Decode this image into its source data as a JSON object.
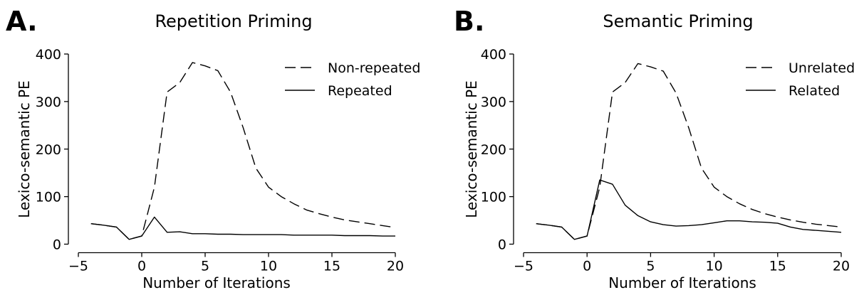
{
  "panels": [
    {
      "letter": "A.",
      "title": "Repetition Priming",
      "xlabel": "Number of Iterations",
      "ylabel": "Lexico-semantic PE",
      "legend_position": "top-right",
      "legend": [
        "Non-repeated",
        "Repeated"
      ]
    },
    {
      "letter": "B.",
      "title": "Semantic Priming",
      "xlabel": "Number of Iterations",
      "ylabel": "Lexico-semantic PE",
      "legend_position": "top-right",
      "legend": [
        "Unrelated",
        "Related"
      ]
    }
  ],
  "chart_data": [
    {
      "type": "line",
      "title": "Repetition Priming",
      "xlabel": "Number of Iterations",
      "ylabel": "Lexico-semantic PE",
      "xlim": [
        -4,
        20
      ],
      "ylim": [
        0,
        400
      ],
      "xticks": [
        -5,
        0,
        5,
        10,
        15,
        20
      ],
      "xtick_labels": [
        "−5",
        "0",
        "5",
        "10",
        "15",
        "20"
      ],
      "yticks": [
        0,
        100,
        200,
        300,
        400
      ],
      "ytick_labels": [
        "0",
        "100",
        "200",
        "300",
        "400"
      ],
      "grid": false,
      "legend_position": "top-right",
      "series": [
        {
          "name": "Non-repeated",
          "style": "dashed",
          "x": [
            -4,
            -3,
            -2,
            -1,
            0,
            1,
            2,
            3,
            4,
            5,
            6,
            7,
            8,
            9,
            10,
            11,
            12,
            13,
            14,
            15,
            16,
            17,
            18,
            19,
            20
          ],
          "y": [
            43,
            40,
            36,
            10,
            17,
            120,
            320,
            340,
            382,
            375,
            365,
            320,
            245,
            160,
            120,
            100,
            85,
            72,
            64,
            57,
            51,
            47,
            43,
            39,
            35
          ]
        },
        {
          "name": "Repeated",
          "style": "solid",
          "x": [
            -4,
            -3,
            -2,
            -1,
            0,
            1,
            2,
            3,
            4,
            5,
            6,
            7,
            8,
            9,
            10,
            11,
            12,
            13,
            14,
            15,
            16,
            17,
            18,
            19,
            20
          ],
          "y": [
            43,
            40,
            36,
            10,
            17,
            57,
            25,
            26,
            22,
            22,
            21,
            21,
            20,
            20,
            20,
            20,
            19,
            19,
            19,
            19,
            18,
            18,
            18,
            17,
            17
          ]
        }
      ]
    },
    {
      "type": "line",
      "title": "Semantic Priming",
      "xlabel": "Number of Iterations",
      "ylabel": "Lexico-semantic PE",
      "xlim": [
        -4,
        20
      ],
      "ylim": [
        0,
        400
      ],
      "xticks": [
        -5,
        0,
        5,
        10,
        15,
        20
      ],
      "xtick_labels": [
        "−5",
        "0",
        "5",
        "10",
        "15",
        "20"
      ],
      "yticks": [
        0,
        100,
        200,
        300,
        400
      ],
      "ytick_labels": [
        "0",
        "100",
        "200",
        "300",
        "400"
      ],
      "grid": false,
      "legend_position": "top-right",
      "series": [
        {
          "name": "Unrelated",
          "style": "dashed",
          "x": [
            -4,
            -3,
            -2,
            -1,
            0,
            1,
            2,
            3,
            4,
            5,
            6,
            7,
            8,
            9,
            10,
            11,
            12,
            13,
            14,
            15,
            16,
            17,
            18,
            19,
            20
          ],
          "y": [
            43,
            40,
            36,
            10,
            17,
            120,
            320,
            340,
            380,
            373,
            364,
            318,
            245,
            160,
            120,
            100,
            85,
            73,
            64,
            57,
            51,
            46,
            42,
            39,
            36
          ]
        },
        {
          "name": "Related",
          "style": "solid",
          "x": [
            -4,
            -3,
            -2,
            -1,
            0,
            1,
            2,
            3,
            4,
            5,
            6,
            7,
            8,
            9,
            10,
            11,
            12,
            13,
            14,
            15,
            16,
            17,
            18,
            19,
            20
          ],
          "y": [
            43,
            40,
            36,
            10,
            17,
            135,
            126,
            82,
            60,
            47,
            41,
            38,
            39,
            41,
            45,
            49,
            49,
            47,
            46,
            44,
            36,
            31,
            29,
            27,
            25
          ]
        }
      ]
    }
  ]
}
